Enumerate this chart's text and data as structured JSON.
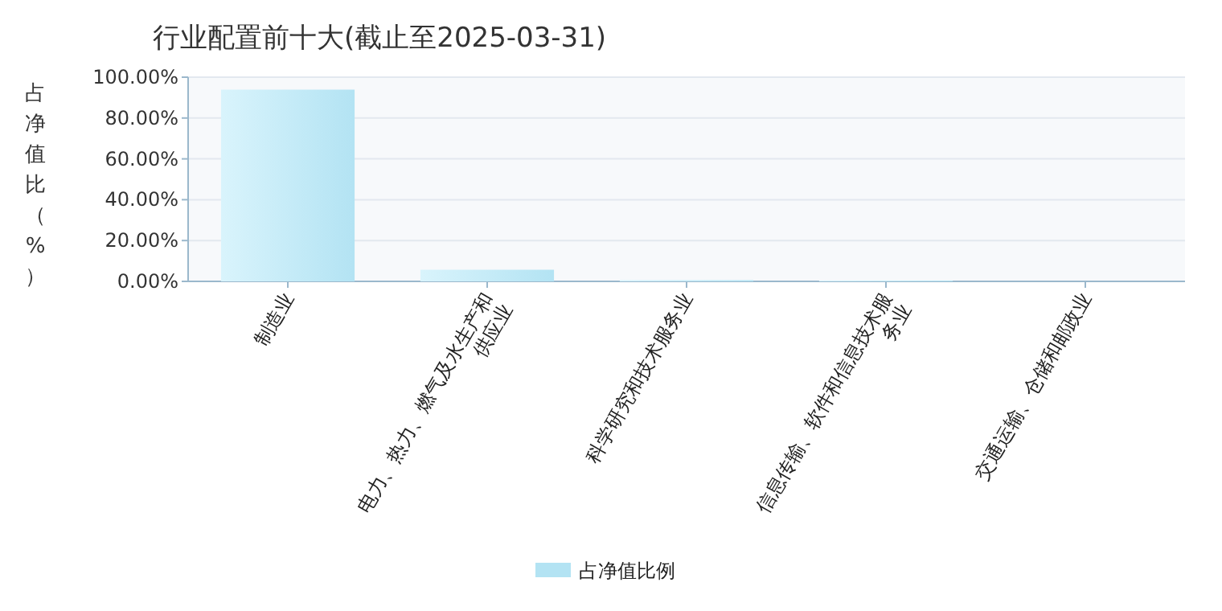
{
  "chart_data": {
    "type": "bar",
    "title": "行业配置前十大(截止至2025-03-31)",
    "ylabel": "占净值比（%）",
    "categories": [
      "制造业",
      "电力、热力、燃气及水生产和供应业",
      "科学研究和技术服务业",
      "信息传输、软件和信息技术服务业",
      "交通运输、仓储和邮政业"
    ],
    "series": [
      {
        "name": "占净值比例",
        "color": "#b3e3f3",
        "values": [
          93.9,
          5.7,
          0.6,
          0.4,
          0
        ]
      }
    ],
    "ylim": [
      0,
      100
    ],
    "yticks": [
      {
        "value": 0,
        "label": "0.00%"
      },
      {
        "value": 20,
        "label": "20.00%"
      },
      {
        "value": 40,
        "label": "40.00%"
      },
      {
        "value": 60,
        "label": "60.00%"
      },
      {
        "value": 80,
        "label": "80.00%"
      },
      {
        "value": 100,
        "label": "100.00%"
      }
    ],
    "grid": "y",
    "legend": "bottom"
  }
}
